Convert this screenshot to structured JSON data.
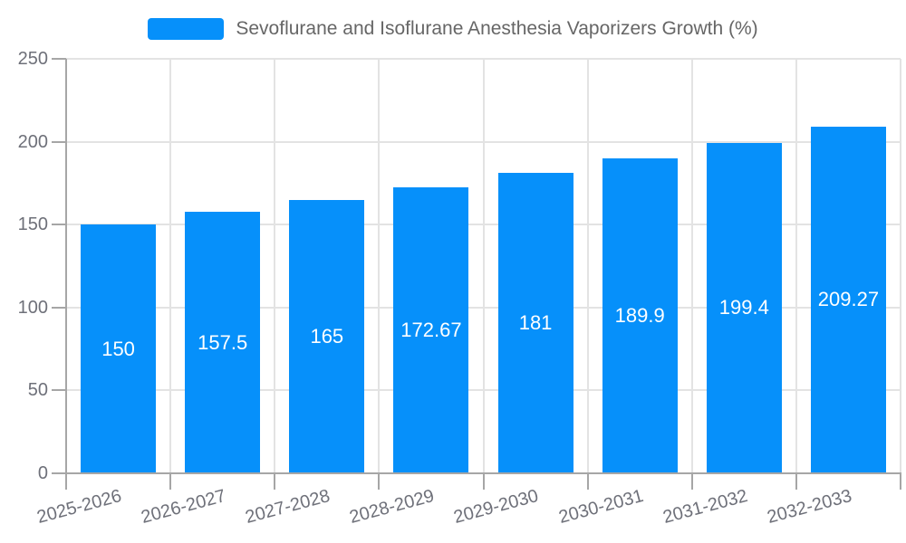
{
  "chart_data": {
    "type": "bar",
    "title": "Sevoflurane and Isoflurane Anesthesia Vaporizers Growth (%)",
    "legend_label": "Sevoflurane and Isoflurane Anesthesia Vaporizers Growth (%)",
    "legend_position": "top-center",
    "categories": [
      "2025-2026",
      "2026-2027",
      "2027-2028",
      "2028-2029",
      "2029-2030",
      "2030-2031",
      "2031-2032",
      "2032-2033"
    ],
    "values": [
      150,
      157.5,
      165,
      172.67,
      181,
      189.9,
      199.4,
      209.27
    ],
    "value_labels": [
      "150",
      "157.5",
      "165",
      "172.67",
      "181",
      "189.9",
      "199.4",
      "209.27"
    ],
    "xlabel": "",
    "ylabel": "",
    "ylim": [
      0,
      250
    ],
    "yticks": [
      0,
      50,
      100,
      150,
      200,
      250
    ],
    "grid": true,
    "x_label_rotation_deg": -15,
    "colors": {
      "bar": "#0690fa",
      "grid_line": "#e3e3e3",
      "axis_line": "#a6a6a6",
      "tick_label": "#6e7079",
      "legend_text": "#666666",
      "bar_label": "#ffffff",
      "background": "#ffffff"
    }
  }
}
